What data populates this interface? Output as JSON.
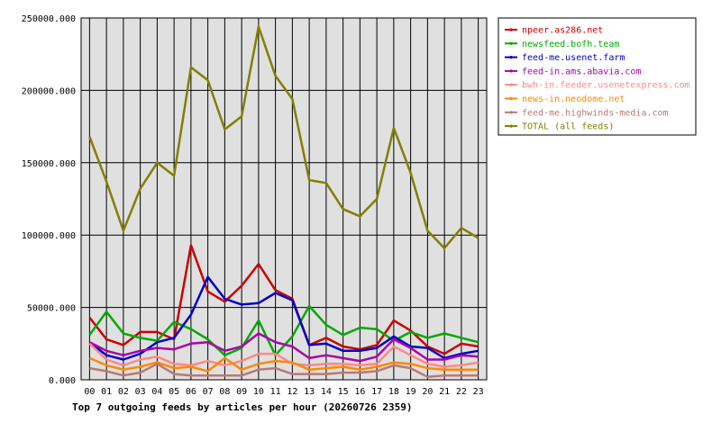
{
  "chart_data": {
    "type": "line",
    "title": "Top 7 outgoing feeds by articles per hour (20260726 2359)",
    "xlabel": "",
    "ylabel": "",
    "categories": [
      "00",
      "01",
      "02",
      "03",
      "04",
      "05",
      "06",
      "07",
      "08",
      "09",
      "10",
      "11",
      "12",
      "13",
      "14",
      "15",
      "16",
      "17",
      "18",
      "19",
      "20",
      "21",
      "22",
      "23"
    ],
    "ylim": [
      0,
      250000
    ],
    "yticks": [
      "0.000",
      "50000.000",
      "100000.000",
      "150000.000",
      "200000.000",
      "250000.000"
    ],
    "ytick_values": [
      0,
      50000,
      100000,
      150000,
      200000,
      250000
    ],
    "grid": true,
    "legend_position": "right",
    "series": [
      {
        "name": "npeer.as286.net",
        "color": "#cc0000",
        "values": [
          43000,
          28000,
          24000,
          33000,
          33000,
          28000,
          93000,
          61000,
          54000,
          65000,
          80000,
          62000,
          56000,
          24000,
          29000,
          23000,
          21000,
          24000,
          41000,
          34000,
          23000,
          18000,
          25000,
          23000
        ]
      },
      {
        "name": "newsfeed.bofh.team",
        "color": "#00aa00",
        "values": [
          31000,
          47000,
          32000,
          29000,
          27000,
          40000,
          35000,
          28000,
          17000,
          22000,
          41000,
          17000,
          30000,
          51000,
          38000,
          31000,
          36000,
          35000,
          27000,
          33000,
          29000,
          32000,
          29000,
          26000
        ]
      },
      {
        "name": "feed-me.usenet.farm",
        "color": "#0000cc",
        "values": [
          26000,
          17000,
          14000,
          18000,
          26000,
          29000,
          45000,
          71000,
          56000,
          52000,
          53000,
          60000,
          55000,
          24000,
          25000,
          20000,
          20000,
          22000,
          30000,
          23000,
          22000,
          15000,
          18000,
          20000
        ]
      },
      {
        "name": "feed-in.ams.abavia.com",
        "color": "#aa00aa",
        "values": [
          26000,
          20000,
          17000,
          20000,
          22000,
          21000,
          25000,
          26000,
          20000,
          23000,
          32000,
          26000,
          23000,
          15000,
          17000,
          15000,
          13000,
          16000,
          28000,
          22000,
          14000,
          14000,
          17000,
          16000
        ]
      },
      {
        "name": "bwh-in.feeder.usenetexpress.com",
        "color": "#ff8888",
        "values": [
          25000,
          14000,
          10000,
          14000,
          16000,
          11000,
          10000,
          13000,
          10000,
          13000,
          18000,
          18000,
          11000,
          10000,
          11000,
          11000,
          10000,
          11000,
          23000,
          17000,
          11000,
          9000,
          10000,
          12000
        ]
      },
      {
        "name": "news-in.neodome.net",
        "color": "#ff8800",
        "values": [
          15000,
          10000,
          7000,
          9000,
          12000,
          8000,
          9000,
          6000,
          15000,
          7000,
          11000,
          13000,
          12000,
          7000,
          8000,
          9000,
          7000,
          9000,
          12000,
          11000,
          8000,
          7000,
          7000,
          7000
        ]
      },
      {
        "name": "feed-me.highwinds-media.com",
        "color": "#bb7777",
        "values": [
          8000,
          6000,
          3000,
          5000,
          11000,
          4000,
          3000,
          3000,
          3000,
          3000,
          7000,
          8000,
          4000,
          4000,
          4000,
          5000,
          5000,
          6000,
          10000,
          8000,
          2000,
          3000,
          3000,
          3000
        ]
      },
      {
        "name": "TOTAL (all feeds)",
        "color": "#808000",
        "values": [
          168000,
          137000,
          103000,
          132000,
          150000,
          141000,
          216000,
          207000,
          173000,
          182000,
          244000,
          210000,
          194000,
          138000,
          136000,
          118000,
          113000,
          125000,
          174000,
          143000,
          103000,
          91000,
          105000,
          98000
        ]
      }
    ]
  }
}
